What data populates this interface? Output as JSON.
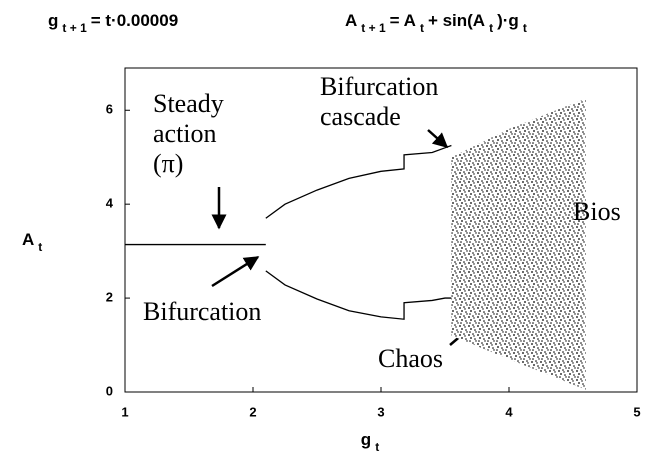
{
  "chart_data": {
    "type": "line",
    "formula_left": [
      "g",
      "t + 1",
      "= t·0.00009"
    ],
    "formula_right": [
      "A",
      "t + 1",
      "= A",
      "t",
      "+ sin(A",
      "t",
      ")·g",
      "t"
    ],
    "x_label": [
      "g",
      "t"
    ],
    "y_label": [
      "A",
      "t"
    ],
    "xlim": [
      1,
      5
    ],
    "ylim": [
      0,
      6.9
    ],
    "xticks": [
      1,
      2,
      3,
      4,
      5
    ],
    "yticks": [
      0,
      2,
      4,
      6
    ],
    "color": "#000000",
    "series": [
      {
        "type": "line",
        "x": [
          1,
          2.1
        ],
        "values": [
          3.14,
          3.14
        ]
      },
      {
        "type": "line",
        "x": [
          2.1,
          2.25,
          2.5,
          2.75,
          3.0,
          3.18,
          3.18,
          3.4,
          3.5,
          3.55
        ],
        "values": [
          3.7,
          4.0,
          4.3,
          4.55,
          4.7,
          4.75,
          5.05,
          5.1,
          5.2,
          5.25
        ]
      },
      {
        "type": "line",
        "x": [
          2.1,
          2.25,
          2.5,
          2.75,
          3.0,
          3.18,
          3.18,
          3.4,
          3.5,
          3.55
        ],
        "values": [
          2.58,
          2.28,
          1.98,
          1.73,
          1.6,
          1.55,
          1.9,
          1.95,
          2.0,
          2.0
        ]
      },
      {
        "type": "band",
        "x": [
          3.55,
          4.0,
          4.6
        ],
        "upper": [
          5.0,
          5.6,
          6.25
        ],
        "lower": [
          1.2,
          0.7,
          0.05
        ]
      }
    ],
    "annotations": [
      {
        "text": [
          "Steady",
          "action",
          "(π)"
        ]
      },
      {
        "text": [
          "Bifurcation"
        ]
      },
      {
        "text": [
          "Bifurcation",
          "cascade"
        ]
      },
      {
        "text": [
          "Chaos"
        ]
      },
      {
        "text": [
          "Bios"
        ]
      }
    ]
  }
}
